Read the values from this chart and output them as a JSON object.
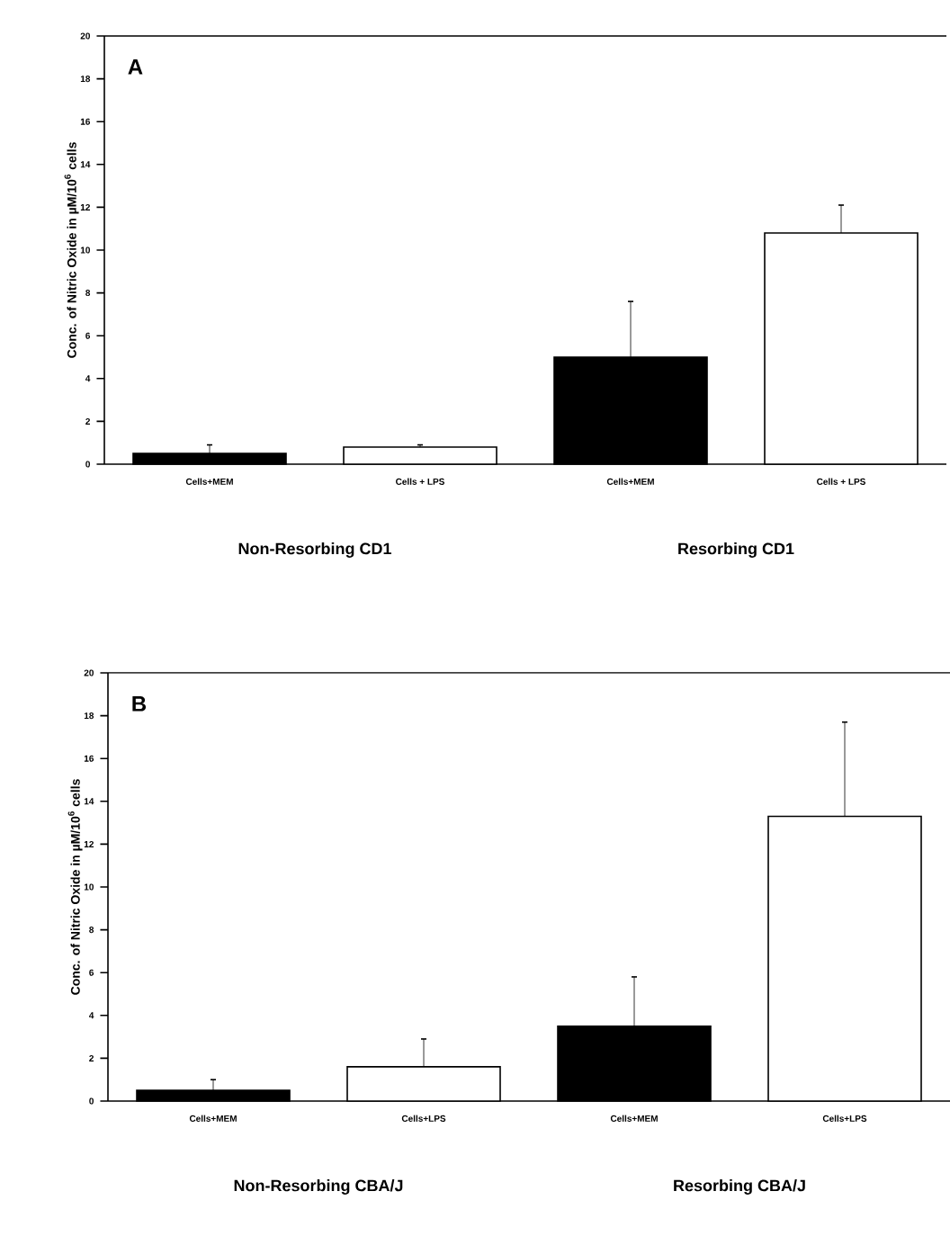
{
  "chart_data": [
    {
      "type": "bar",
      "ylabel": "Conc. of Nitric Oxide in µM/10$^{6}$ cells",
      "categories": [
        "Cells+MEM",
        "Cells + LPS",
        "Cells+MEM",
        "Cells + LPS"
      ],
      "values": [
        0.5,
        0.8,
        5.0,
        10.8
      ],
      "colors": [
        "#000000",
        "#ffffff",
        "#000000",
        "#ffffff"
      ],
      "errors": [
        [
          0.5,
          0.9
        ],
        [
          0.8,
          0.9
        ],
        [
          5.0,
          7.6
        ],
        [
          10.8,
          12.1
        ]
      ],
      "ylim": [
        0,
        20
      ],
      "yticks": [
        0,
        2,
        4,
        6,
        8,
        10,
        12,
        14,
        16,
        18,
        20
      ],
      "annotations": [
        "A",
        "Non-Resorbing CD1",
        "Resorbing CD1"
      ]
    },
    {
      "type": "bar",
      "ylabel": "Conc. of Nitric Oxide in µM/10$^{6}$ cells",
      "categories": [
        "Cells+MEM",
        "Cells+LPS",
        "Cells+MEM",
        "Cells+LPS"
      ],
      "values": [
        0.5,
        1.6,
        3.5,
        13.3
      ],
      "colors": [
        "#000000",
        "#ffffff",
        "#000000",
        "#ffffff"
      ],
      "errors": [
        [
          0.5,
          1.0
        ],
        [
          1.6,
          2.9
        ],
        [
          3.5,
          5.8
        ],
        [
          13.3,
          17.7
        ]
      ],
      "ylim": [
        0,
        20
      ],
      "yticks": [
        0,
        2,
        4,
        6,
        8,
        10,
        12,
        14,
        16,
        18,
        20
      ],
      "annotations": [
        "B",
        "Non-Resorbing CBA/J",
        "Resorbing CBA/J"
      ]
    }
  ]
}
